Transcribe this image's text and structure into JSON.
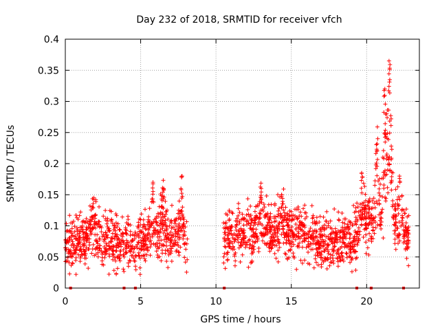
{
  "chart_data": {
    "type": "scatter",
    "title": "Day 232 of 2018, SRMTID for receiver vfch",
    "xlabel": "GPS time / hours",
    "ylabel": "SRMTID / TECUs",
    "xlim": [
      0,
      23.5
    ],
    "ylim": [
      0,
      0.4
    ],
    "x_ticks": [
      0,
      5,
      10,
      15,
      20
    ],
    "x_tick_labels": [
      "0",
      "5",
      "10",
      "15",
      "20"
    ],
    "y_ticks": [
      0,
      0.05,
      0.1,
      0.15,
      0.2,
      0.25,
      0.3,
      0.35,
      0.4
    ],
    "y_tick_labels": [
      "0",
      "0.05",
      "0.1",
      "0.15",
      "0.2",
      "0.25",
      "0.3",
      "0.35",
      "0.4"
    ],
    "grid": true,
    "marker": "plus",
    "series_color": "#ff0000",
    "zero_value_points_x": [
      0.35,
      3.9,
      4.65,
      10.55,
      19.35,
      20.3,
      22.45
    ],
    "series": [
      {
        "name": "SRMTID",
        "segments": [
          {
            "x_start": 0.0,
            "x_end": 8.1,
            "baseline": [
              [
                0,
                0.07
              ],
              [
                1,
                0.075
              ],
              [
                2,
                0.08
              ],
              [
                3,
                0.075
              ],
              [
                4,
                0.07
              ],
              [
                5,
                0.075
              ],
              [
                6,
                0.085
              ],
              [
                7,
                0.08
              ],
              [
                8.1,
                0.07
              ]
            ],
            "spread": 0.03,
            "count": 800,
            "peaks": [
              [
                1.85,
                0.145
              ],
              [
                5.8,
                0.17
              ],
              [
                6.5,
                0.16
              ],
              [
                7.7,
                0.18
              ]
            ]
          },
          {
            "x_start": 10.5,
            "x_end": 22.8,
            "baseline": [
              [
                10.5,
                0.08
              ],
              [
                12,
                0.085
              ],
              [
                13,
                0.1
              ],
              [
                14,
                0.09
              ],
              [
                15,
                0.09
              ],
              [
                16,
                0.085
              ],
              [
                17,
                0.07
              ],
              [
                18,
                0.08
              ],
              [
                19,
                0.08
              ],
              [
                20,
                0.1
              ],
              [
                21,
                0.12
              ],
              [
                21.5,
                0.15
              ],
              [
                22,
                0.1
              ],
              [
                22.8,
                0.08
              ]
            ],
            "spread": 0.03,
            "count": 1200,
            "peaks": [
              [
                13.0,
                0.16
              ],
              [
                14.4,
                0.15
              ],
              [
                19.7,
                0.185
              ],
              [
                20.7,
                0.24
              ],
              [
                21.2,
                0.32
              ],
              [
                21.5,
                0.365
              ],
              [
                22.2,
                0.18
              ]
            ]
          }
        ]
      }
    ]
  }
}
